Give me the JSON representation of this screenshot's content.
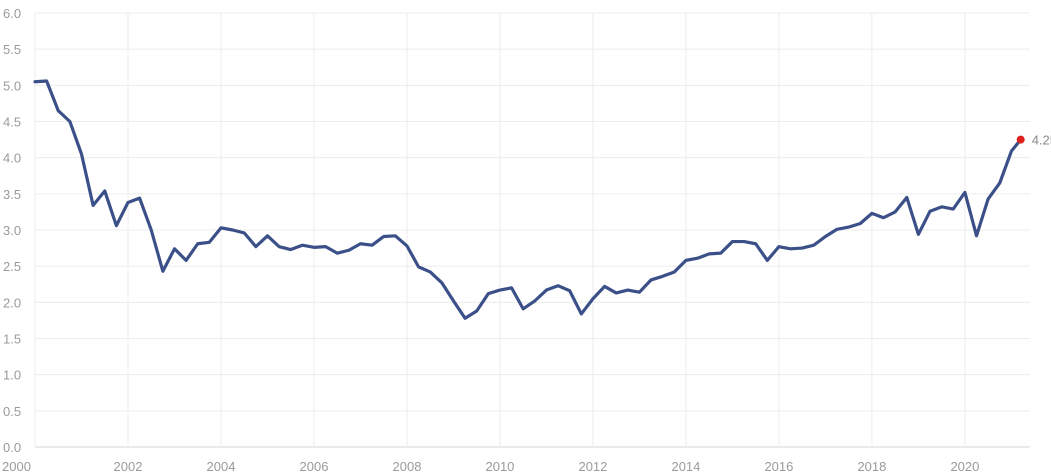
{
  "chart_data": {
    "type": "line",
    "title": "",
    "xlabel": "",
    "ylabel": "",
    "grid": true,
    "xlim": [
      2000.0,
      2021.4
    ],
    "ylim": [
      0,
      6
    ],
    "x_ticks": [
      "2000",
      "2002",
      "2004",
      "2006",
      "2008",
      "2010",
      "2012",
      "2014",
      "2016",
      "2018",
      "2020"
    ],
    "y_ticks": [
      "0.0",
      "0.5",
      "1.0",
      "1.5",
      "2.0",
      "2.5",
      "3.0",
      "3.5",
      "4.0",
      "4.5",
      "5.0",
      "5.5",
      "6.0"
    ],
    "line_color": "#3b5088",
    "last_point_color": "#e0201c",
    "last_value_label": "4.25",
    "series": [
      {
        "x": [
          2000.0,
          2000.25,
          2000.5,
          2000.75,
          2001.0,
          2001.25,
          2001.5,
          2001.75,
          2002.0,
          2002.25,
          2002.5,
          2002.75,
          2003.0,
          2003.25,
          2003.5,
          2003.75,
          2004.0,
          2004.25,
          2004.5,
          2004.75,
          2005.0,
          2005.25,
          2005.5,
          2005.75,
          2006.0,
          2006.25,
          2006.5,
          2006.75,
          2007.0,
          2007.25,
          2007.5,
          2007.75,
          2008.0,
          2008.25,
          2008.5,
          2008.75,
          2009.0,
          2009.25,
          2009.5,
          2009.75,
          2010.0,
          2010.25,
          2010.5,
          2010.75,
          2011.0,
          2011.25,
          2011.5,
          2011.75,
          2012.0,
          2012.25,
          2012.5,
          2012.75,
          2013.0,
          2013.25,
          2013.5,
          2013.75,
          2014.0,
          2014.25,
          2014.5,
          2014.75,
          2015.0,
          2015.25,
          2015.5,
          2015.75,
          2016.0,
          2016.25,
          2016.5,
          2016.75,
          2017.0,
          2017.25,
          2017.5,
          2017.75,
          2018.0,
          2018.25,
          2018.5,
          2018.75,
          2019.0,
          2019.25,
          2019.5,
          2019.75,
          2020.0,
          2020.25,
          2020.5,
          2020.75,
          2021.0,
          2021.2
        ],
        "values": [
          5.05,
          5.06,
          4.65,
          4.5,
          4.05,
          3.34,
          3.54,
          3.06,
          3.38,
          3.44,
          3.0,
          2.43,
          2.74,
          2.58,
          2.81,
          2.83,
          3.03,
          3.0,
          2.96,
          2.77,
          2.92,
          2.77,
          2.73,
          2.79,
          2.76,
          2.77,
          2.68,
          2.72,
          2.81,
          2.79,
          2.91,
          2.92,
          2.78,
          2.49,
          2.42,
          2.27,
          2.02,
          1.78,
          1.88,
          2.12,
          2.17,
          2.2,
          1.91,
          2.02,
          2.17,
          2.23,
          2.16,
          1.84,
          2.05,
          2.22,
          2.13,
          2.17,
          2.14,
          2.31,
          2.36,
          2.42,
          2.58,
          2.61,
          2.67,
          2.68,
          2.84,
          2.84,
          2.81,
          2.58,
          2.77,
          2.74,
          2.75,
          2.79,
          2.91,
          3.01,
          3.04,
          3.09,
          3.23,
          3.17,
          3.25,
          3.45,
          2.94,
          3.26,
          3.32,
          3.29,
          3.52,
          2.92,
          3.43,
          3.65,
          4.09,
          4.25
        ]
      }
    ]
  }
}
